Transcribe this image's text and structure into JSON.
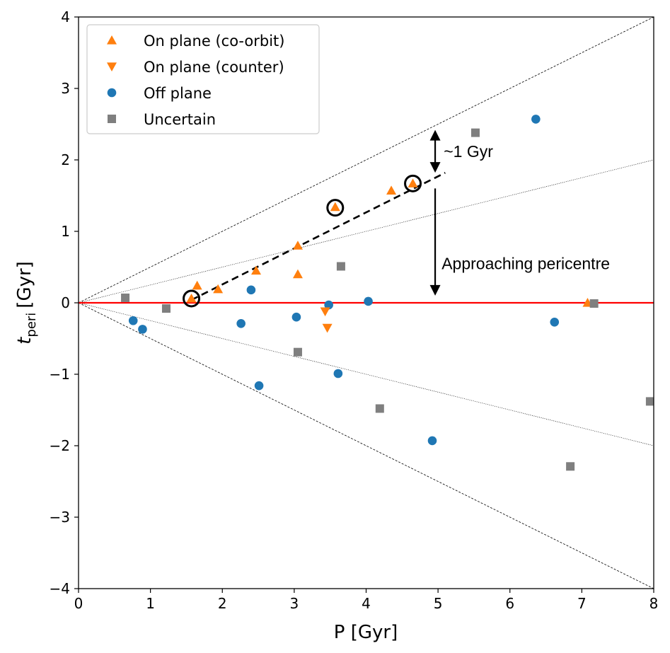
{
  "chart_data": {
    "type": "scatter",
    "xlabel": "P [Gyr]",
    "ylabel_main": "t",
    "ylabel_sub": "peri",
    "ylabel_unit": "[Gyr]",
    "xlim": [
      0,
      8
    ],
    "ylim": [
      -4,
      4
    ],
    "xticks": [
      0,
      1,
      2,
      3,
      4,
      5,
      6,
      7,
      8
    ],
    "yticks": [
      -4,
      -3,
      -2,
      -1,
      0,
      1,
      2,
      3,
      4
    ],
    "x_tick_labels": [
      "0",
      "1",
      "2",
      "3",
      "4",
      "5",
      "6",
      "7",
      "8"
    ],
    "y_tick_labels": [
      "−4",
      "−3",
      "−2",
      "−1",
      "0",
      "1",
      "2",
      "3",
      "4"
    ],
    "legend_position": "top-left",
    "colors": {
      "orange": "#ff7f0e",
      "blue": "#1f77b4",
      "gray": "#7f7f7f",
      "zero_line": "#ff0000"
    },
    "series": [
      {
        "name": "On plane (co-orbit)",
        "marker": "triangle-up",
        "color": "#ff7f0e",
        "points": [
          [
            1.57,
            0.06
          ],
          [
            1.65,
            0.24
          ],
          [
            1.94,
            0.19
          ],
          [
            2.47,
            0.45
          ],
          [
            3.05,
            0.8
          ],
          [
            3.05,
            0.4
          ],
          [
            3.57,
            1.34
          ],
          [
            4.35,
            1.57
          ],
          [
            4.65,
            1.67
          ],
          [
            7.08,
            0.0
          ]
        ]
      },
      {
        "name": "On plane (counter)",
        "marker": "triangle-down",
        "color": "#ff7f0e",
        "points": [
          [
            3.43,
            -0.12
          ],
          [
            3.46,
            -0.35
          ]
        ]
      },
      {
        "name": "Off plane",
        "marker": "circle",
        "color": "#1f77b4",
        "points": [
          [
            0.76,
            -0.25
          ],
          [
            0.89,
            -0.37
          ],
          [
            2.26,
            -0.29
          ],
          [
            2.4,
            0.18
          ],
          [
            2.51,
            -1.16
          ],
          [
            3.03,
            -0.2
          ],
          [
            3.48,
            -0.03
          ],
          [
            3.61,
            -0.99
          ],
          [
            4.03,
            0.02
          ],
          [
            4.92,
            -1.93
          ],
          [
            6.36,
            2.57
          ],
          [
            6.62,
            -0.27
          ]
        ]
      },
      {
        "name": "Uncertain",
        "marker": "square",
        "color": "#7f7f7f",
        "points": [
          [
            0.65,
            0.07
          ],
          [
            1.22,
            -0.08
          ],
          [
            3.05,
            -0.69
          ],
          [
            3.65,
            0.51
          ],
          [
            4.19,
            -1.48
          ],
          [
            5.52,
            2.38
          ],
          [
            6.84,
            -2.29
          ],
          [
            7.17,
            -0.01
          ],
          [
            7.95,
            -1.38
          ]
        ]
      }
    ],
    "highlighted_points": [
      [
        1.57,
        0.06
      ],
      [
        3.57,
        1.33
      ],
      [
        4.65,
        1.67
      ]
    ],
    "fit_line": {
      "style": "dashed",
      "from": [
        1.57,
        0.04
      ],
      "to": [
        5.1,
        1.82
      ]
    },
    "reference_lines": [
      {
        "slope": 0.5,
        "style": "dashed-thin"
      },
      {
        "slope": -0.5,
        "style": "dashed-thin"
      },
      {
        "slope": 0.25,
        "style": "dotted-thin"
      },
      {
        "slope": -0.25,
        "style": "dotted-thin"
      },
      {
        "slope": 0,
        "style": "solid-red"
      }
    ],
    "annotations": [
      {
        "text": "~1 Gyr",
        "arrow": "double",
        "x": 4.96,
        "y_from": 1.82,
        "y_to": 2.42,
        "text_x": 5.08,
        "text_y": 2.12
      },
      {
        "text": "Approaching pericentre",
        "arrow": "down",
        "x": 4.96,
        "y_from": 1.6,
        "y_to": 0.1,
        "text_x": 5.05,
        "text_y": 0.55
      }
    ]
  }
}
